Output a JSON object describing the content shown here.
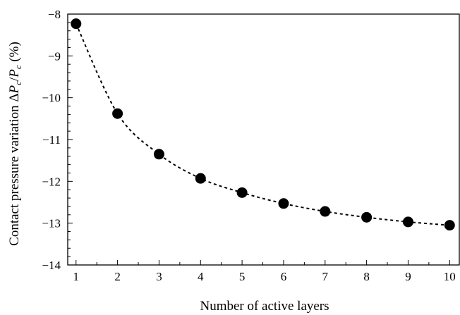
{
  "chart_data": {
    "type": "scatter",
    "xlabel": "Number of active layers",
    "ylabel": {
      "prefix": "Contact pressure variation  Δ",
      "p1": "P",
      "s1": "c",
      "slash": "/",
      "p2": "P",
      "s2": "c",
      "unit": "  (%)"
    },
    "xlim": [
      0.8,
      10.25
    ],
    "ylim": [
      -14,
      -8
    ],
    "xticks": [
      "1",
      "2",
      "3",
      "4",
      "5",
      "6",
      "7",
      "8",
      "9",
      "10"
    ],
    "yticks": [
      "−8",
      "−9",
      "−10",
      "−11",
      "−12",
      "−13",
      "−14"
    ],
    "grid": false,
    "legend": "none",
    "series": [
      {
        "style": "markers with dashed fit curve",
        "color": "#000000",
        "x": [
          1,
          2,
          3,
          4,
          5,
          6,
          7,
          8,
          9,
          10
        ],
        "y": [
          -8.23,
          -10.38,
          -11.35,
          -11.93,
          -12.27,
          -12.53,
          -12.72,
          -12.86,
          -12.97,
          -13.05
        ]
      }
    ]
  }
}
